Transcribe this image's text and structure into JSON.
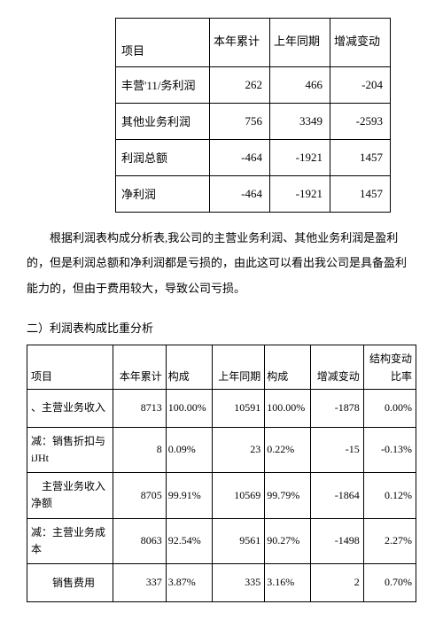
{
  "table1": {
    "headers": {
      "item": "项目",
      "current": "本年累计",
      "previous": "上年同期",
      "change": "增减变动"
    },
    "rows": [
      {
        "label": "丰营'11/务利润",
        "current": "262",
        "previous": "466",
        "change": "-204"
      },
      {
        "label": "其他业务利润",
        "current": "756",
        "previous": "3349",
        "change": "-2593"
      },
      {
        "label": "利润总额",
        "current": "-464",
        "previous": "-1921",
        "change": "1457"
      },
      {
        "label": "净利润",
        "current": "-464",
        "previous": "-1921",
        "change": "1457"
      }
    ]
  },
  "paragraph": "根据利润表构成分析表,我公司的主营业务利润、其他业务利润是盈利的，但是利润总额和净利润都是亏损的，由此这可以看出我公司是具备盈利能力的，但由于费用较大，导致公司亏损。",
  "section_title": "二）利润表构成比重分析",
  "table2": {
    "headers": {
      "item": "项目",
      "current": "本年累计",
      "comp1": "构成",
      "previous": "上年同期",
      "comp2": "构成",
      "change": "增减变动",
      "struct": "结构变动比率"
    },
    "rows": [
      {
        "label": "、主营业务收入",
        "current": "8713",
        "comp1": "100.00%",
        "previous": "10591",
        "comp2": "100.00%",
        "change": "-1878",
        "struct": "0.00%"
      },
      {
        "label": "减：销售折扣与iJHt",
        "current": "8",
        "comp1": "0.09%",
        "previous": "23",
        "comp2": "0.22%",
        "change": "-15",
        "struct": "-0.13%"
      },
      {
        "label": "　主营业务收入净额",
        "current": "8705",
        "comp1": "99.91%",
        "previous": "10569",
        "comp2": "99.79%",
        "change": "-1864",
        "struct": "0.12%"
      },
      {
        "label": "减：主营业务成本",
        "current": "8063",
        "comp1": "92.54%",
        "previous": "9561",
        "comp2": "90.27%",
        "change": "-1498",
        "struct": "2.27%"
      },
      {
        "label": "　　销售费用",
        "current": "337",
        "comp1": "3.87%",
        "previous": "335",
        "comp2": "3.16%",
        "change": "2",
        "struct": "0.70%"
      }
    ]
  }
}
